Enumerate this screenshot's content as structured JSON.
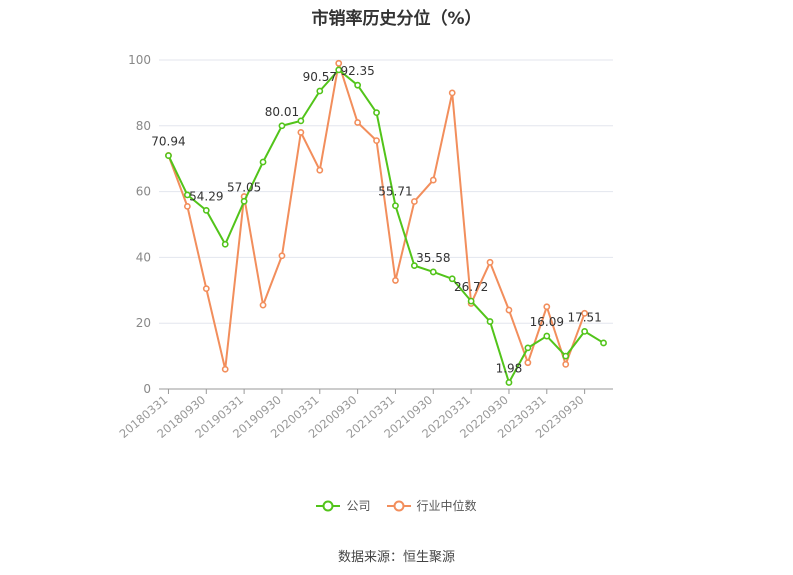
{
  "title": "市销率历史分位（%）",
  "source": "数据来源：恒生聚源",
  "legend": [
    {
      "label": "公司",
      "color": "#52c41a"
    },
    {
      "label": "行业中位数",
      "color": "#f28e5c"
    }
  ],
  "chart_data": {
    "type": "line",
    "title": "市销率历史分位（%）",
    "ylim": [
      0,
      100
    ],
    "yticks": [
      0,
      20,
      40,
      60,
      80,
      100
    ],
    "grid": true,
    "legend_position": "bottom",
    "tick_labels": [
      "20180331",
      "20180930",
      "20190331",
      "20190930",
      "20200331",
      "20200930",
      "20210331",
      "20210930",
      "20220331",
      "20220930",
      "20230331",
      "20230930"
    ],
    "x": [
      "20180331",
      "20180630",
      "20180930",
      "20181231",
      "20190331",
      "20190630",
      "20190930",
      "20191231",
      "20200331",
      "20200630",
      "20200930",
      "20201231",
      "20210331",
      "20210630",
      "20210930",
      "20211231",
      "20220331",
      "20220630",
      "20220930",
      "20221231",
      "20230331",
      "20230630",
      "20230930",
      "20231231"
    ],
    "series": [
      {
        "name": "公司",
        "color": "#52c41a",
        "values": [
          70.94,
          59.0,
          54.29,
          44.0,
          57.05,
          69.0,
          80.01,
          81.5,
          90.57,
          97.0,
          92.35,
          84.0,
          55.71,
          37.5,
          35.58,
          33.5,
          26.72,
          20.5,
          1.98,
          12.5,
          16.09,
          10.0,
          17.51,
          14.0
        ],
        "labels": {
          "0": "70.94",
          "2": "54.29",
          "4": "57.05",
          "6": "80.01",
          "8": "90.57",
          "10": "92.35",
          "12": "55.71",
          "14": "35.58",
          "16": "26.72",
          "18": "1.98",
          "20": "16.09",
          "22": "17.51"
        }
      },
      {
        "name": "行业中位数",
        "color": "#f28e5c",
        "values": [
          71.0,
          55.5,
          30.5,
          6.0,
          58.5,
          25.5,
          40.5,
          78.0,
          66.5,
          99.0,
          81.0,
          75.5,
          33.0,
          57.0,
          63.5,
          90.0,
          26.0,
          38.5,
          24.0,
          8.0,
          25.0,
          7.5,
          23.0,
          null
        ]
      }
    ]
  }
}
